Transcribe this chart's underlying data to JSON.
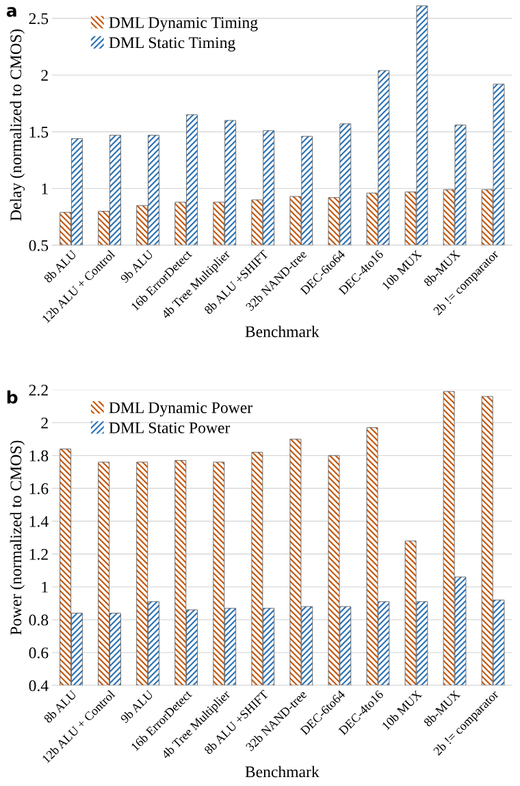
{
  "chart_data": [
    {
      "type": "bar",
      "title": "a",
      "xlabel": "Benchmark",
      "ylabel": "Delay (normalized to CMOS)",
      "categories": [
        "8b ALU",
        "12b ALU + Control",
        "9b ALU",
        "16b ErrorDetect",
        "4b Tree Multiplier",
        "8b ALU +SHIFT",
        "32b NAND-tree",
        "DEC-6to64",
        "DEC-4to16",
        "10b MUX",
        "8b-MUX",
        "2b != comparator"
      ],
      "series": [
        {
          "name": "DML Dynamic Timing",
          "color": "#c55a11",
          "values": [
            0.79,
            0.8,
            0.85,
            0.88,
            0.88,
            0.9,
            0.93,
            0.92,
            0.96,
            0.97,
            0.99,
            0.99
          ]
        },
        {
          "name": "DML Static Timing",
          "color": "#2e75b6",
          "values": [
            1.44,
            1.47,
            1.47,
            1.65,
            1.6,
            1.51,
            1.46,
            1.57,
            2.04,
            2.61,
            1.56,
            1.92
          ]
        }
      ],
      "ylim": [
        0.5,
        2.62
      ],
      "yticks": [
        0.5,
        1,
        1.5,
        2,
        2.5
      ],
      "grid": "y",
      "legend": "top left"
    },
    {
      "type": "bar",
      "title": "b",
      "xlabel": "Benchmark",
      "ylabel": "Power (normalized to CMOS)",
      "categories": [
        "8b ALU",
        "12b ALU + Control",
        "9b ALU",
        "16b ErrorDetect",
        "4b Tree Multiplier",
        "8b ALU +SHIFT",
        "32b NAND-tree",
        "DEC-6to64",
        "DEC-4to16",
        "10b MUX",
        "8b-MUX",
        "2b != comparator"
      ],
      "series": [
        {
          "name": "DML Dynamic Power",
          "color": "#c55a11",
          "values": [
            1.84,
            1.76,
            1.76,
            1.77,
            1.76,
            1.82,
            1.9,
            1.8,
            1.97,
            1.28,
            2.19,
            2.16
          ]
        },
        {
          "name": "DML Static Power",
          "color": "#2e75b6",
          "values": [
            0.84,
            0.84,
            0.91,
            0.86,
            0.87,
            0.87,
            0.88,
            0.88,
            0.91,
            0.91,
            1.06,
            0.92
          ]
        }
      ],
      "ylim": [
        0.4,
        2.2
      ],
      "yticks": [
        0.4,
        0.6,
        0.8,
        1,
        1.2,
        1.4,
        1.6,
        1.8,
        2,
        2.2
      ],
      "grid": "y",
      "legend": "top left"
    }
  ]
}
